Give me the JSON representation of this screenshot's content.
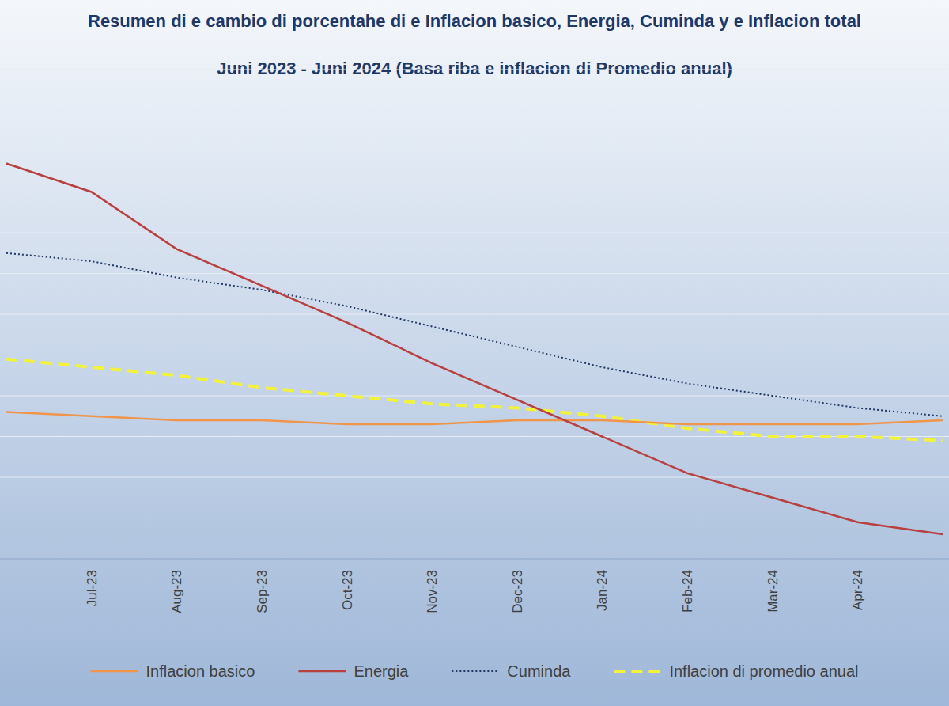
{
  "chart_data": {
    "type": "line",
    "title": "Resumen di e cambio di porcentahe di e Inflacion basico, Energia, Cuminda y e Inflacion total",
    "subtitle": "Juni 2023 - Juni 2024 (Basa riba e inflacion di Promedio anual)",
    "categories": [
      null,
      "Jul-23",
      "Aug-23",
      "Sep-23",
      "Oct-23",
      "Nov-23",
      "Dec-23",
      "Jan-24",
      "Feb-24",
      "Mar-24",
      "Apr-24",
      null
    ],
    "series": [
      {
        "name": "Inflacion basico",
        "color": "#f0954a",
        "line_style": "solid",
        "values": [
          3.6,
          3.5,
          3.4,
          3.4,
          3.3,
          3.3,
          3.4,
          3.4,
          3.3,
          3.3,
          3.3,
          3.4
        ]
      },
      {
        "name": "Energia",
        "color": "#b8403f",
        "line_style": "solid",
        "values": [
          9.7,
          9.0,
          7.6,
          6.7,
          5.8,
          4.8,
          3.9,
          3.0,
          2.1,
          1.5,
          0.9,
          0.6
        ]
      },
      {
        "name": "Cuminda",
        "color": "#1f3864",
        "line_style": "dotted",
        "values": [
          7.5,
          7.3,
          6.9,
          6.6,
          6.2,
          5.7,
          5.2,
          4.7,
          4.3,
          4.0,
          3.7,
          3.5
        ]
      },
      {
        "name": "Inflacion di promedio anual",
        "color": "#f2f23a",
        "line_style": "dashed",
        "values": [
          4.9,
          4.7,
          4.5,
          4.2,
          4.0,
          3.8,
          3.7,
          3.5,
          3.2,
          3.0,
          3.0,
          2.9
        ]
      }
    ],
    "ylim": [
      0,
      12
    ],
    "yticks": [
      0,
      1,
      2,
      3,
      4,
      5,
      6,
      7,
      8,
      9,
      10,
      11,
      12
    ],
    "grid": true,
    "tick_labels": "x",
    "legend": "bottom"
  }
}
